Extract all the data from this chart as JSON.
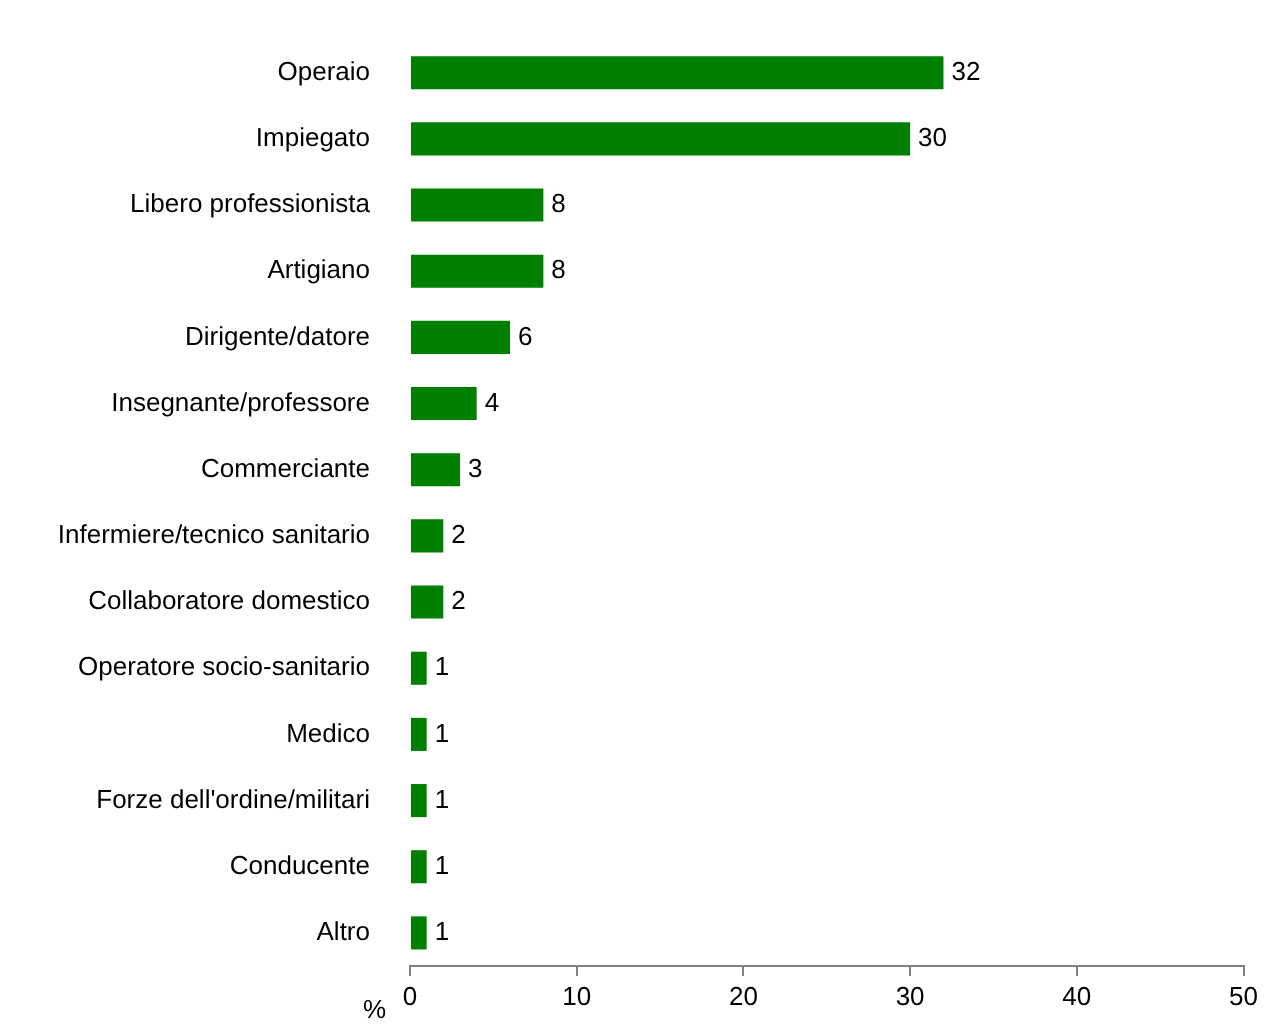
{
  "chart_data": {
    "type": "bar",
    "orientation": "horizontal",
    "xlabel": "%",
    "categories": [
      "Operaio",
      "Impiegato",
      "Libero professionista",
      "Artigiano",
      "Dirigente/datore",
      "Insegnante/professore",
      "Commerciante",
      "Infermiere/tecnico sanitario",
      "Collaboratore domestico",
      "Operatore socio-sanitario",
      "Medico",
      "Forze dell'ordine/militari",
      "Conducente",
      "Altro"
    ],
    "values": [
      32,
      30,
      8,
      8,
      6,
      4,
      3,
      2,
      2,
      1,
      1,
      1,
      1,
      1
    ],
    "color": "#008000",
    "xlim": [
      0,
      50
    ],
    "xticks": [
      0,
      10,
      20,
      30,
      40,
      50
    ],
    "data_labels": true,
    "legend": false
  }
}
